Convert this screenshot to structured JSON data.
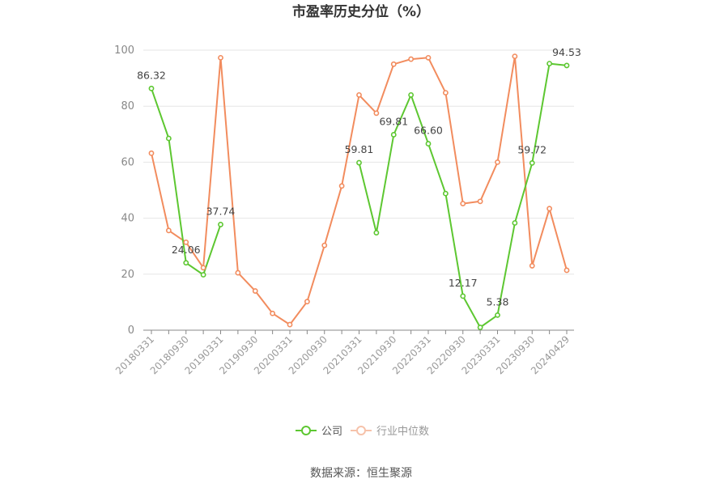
{
  "chart_data": {
    "type": "line",
    "title": "市盈率历史分位（%）",
    "xlabel": "",
    "ylabel": "",
    "ylim": [
      0,
      100
    ],
    "yticks": [
      0,
      20,
      40,
      60,
      80,
      100
    ],
    "grid": true,
    "legend_position": "bottom",
    "x": [
      "20180331",
      "20180630",
      "20180930",
      "20181231",
      "20190331",
      "20190630",
      "20190930",
      "20191231",
      "20200331",
      "20200630",
      "20200930",
      "20201231",
      "20210331",
      "20210630",
      "20210930",
      "20211231",
      "20220331",
      "20220630",
      "20220930",
      "20221231",
      "20230331",
      "20230630",
      "20230930",
      "20231231",
      "20240429"
    ],
    "x_tick_labels": [
      "20180331",
      "20180930",
      "20190331",
      "20190930",
      "20200331",
      "20200930",
      "20210331",
      "20210930",
      "20220331",
      "20220930",
      "20230331",
      "20230930",
      "20240429"
    ],
    "series": [
      {
        "name": "公司",
        "color": "#5dc731",
        "values": [
          86.32,
          68.5,
          24.06,
          19.8,
          37.74,
          null,
          null,
          null,
          null,
          null,
          null,
          null,
          59.81,
          34.8,
          69.81,
          84.0,
          66.6,
          48.8,
          12.17,
          1.0,
          5.38,
          38.3,
          59.72,
          95.2,
          94.53
        ]
      },
      {
        "name": "行业中位数",
        "color": "#f28c5e",
        "values": [
          63.2,
          35.6,
          31.4,
          22.3,
          97.3,
          20.5,
          14.0,
          6.0,
          2.0,
          10.2,
          30.3,
          51.5,
          84.0,
          77.5,
          95.0,
          96.8,
          97.3,
          84.8,
          45.2,
          46.0,
          60.0,
          97.8,
          23.0,
          43.4,
          21.4
        ]
      }
    ],
    "data_labels": [
      {
        "series": 0,
        "index": 0,
        "text": "86.32"
      },
      {
        "series": 0,
        "index": 2,
        "text": "24.06"
      },
      {
        "series": 0,
        "index": 4,
        "text": "37.74"
      },
      {
        "series": 0,
        "index": 12,
        "text": "59.81"
      },
      {
        "series": 0,
        "index": 14,
        "text": "69.81"
      },
      {
        "series": 0,
        "index": 16,
        "text": "66.60"
      },
      {
        "series": 0,
        "index": 18,
        "text": "12.17"
      },
      {
        "series": 0,
        "index": 20,
        "text": "5.38"
      },
      {
        "series": 0,
        "index": 22,
        "text": "59.72"
      },
      {
        "series": 0,
        "index": 24,
        "text": "94.53"
      }
    ]
  },
  "source": "数据来源：恒生聚源"
}
